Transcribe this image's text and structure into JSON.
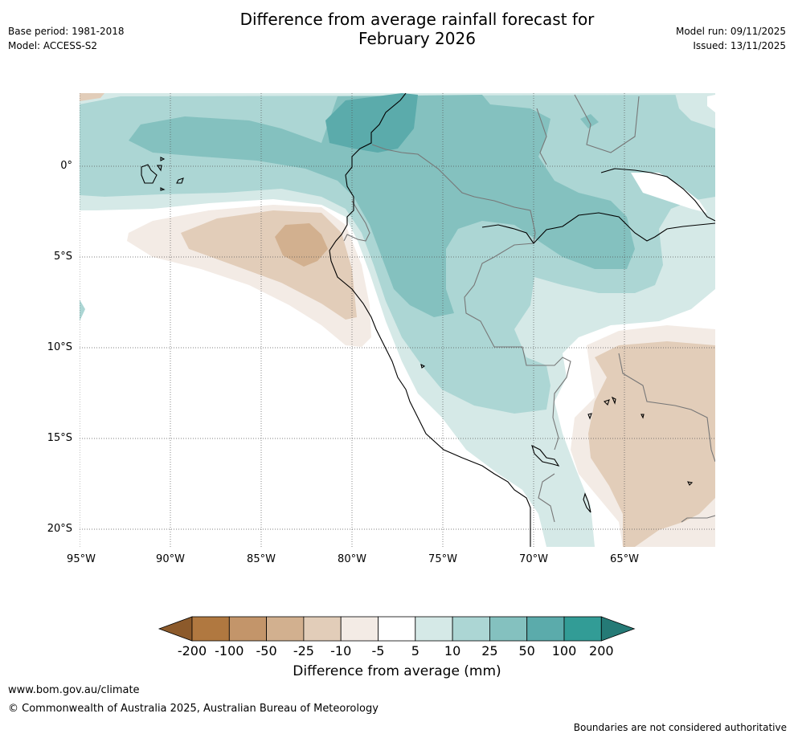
{
  "header": {
    "base_period": "Base period: 1981-2018",
    "model": "Model: ACCESS-S2",
    "title_line1": "Difference from average rainfall forecast for",
    "title_line2": "February 2026",
    "model_run": "Model run: 09/11/2025",
    "issued": "Issued: 13/11/2025"
  },
  "map": {
    "lat_labels": [
      "0°",
      "5°S",
      "10°S",
      "15°S",
      "20°S"
    ],
    "lon_labels": [
      "95°W",
      "90°W",
      "85°W",
      "80°W",
      "75°W",
      "70°W",
      "65°W"
    ]
  },
  "colorbar": {
    "ticks": [
      "-200",
      "-100",
      "-50",
      "-25",
      "-10",
      "-5",
      "5",
      "10",
      "25",
      "50",
      "100",
      "200"
    ],
    "colors": [
      "#8c5a2b",
      "#b07840",
      "#c3956a",
      "#d2b08f",
      "#e2cdb9",
      "#f3ebe5",
      "#ffffff",
      "#d5e9e7",
      "#acd6d4",
      "#84c1bf",
      "#5babab",
      "#329c96",
      "#257a76"
    ],
    "label": "Difference from average (mm)"
  },
  "footer": {
    "website": "www.bom.gov.au/climate",
    "copyright": "© Commonwealth of Australia 2025, Australian Bureau of Meteorology",
    "disclaimer": "Boundaries are not considered authoritative"
  }
}
